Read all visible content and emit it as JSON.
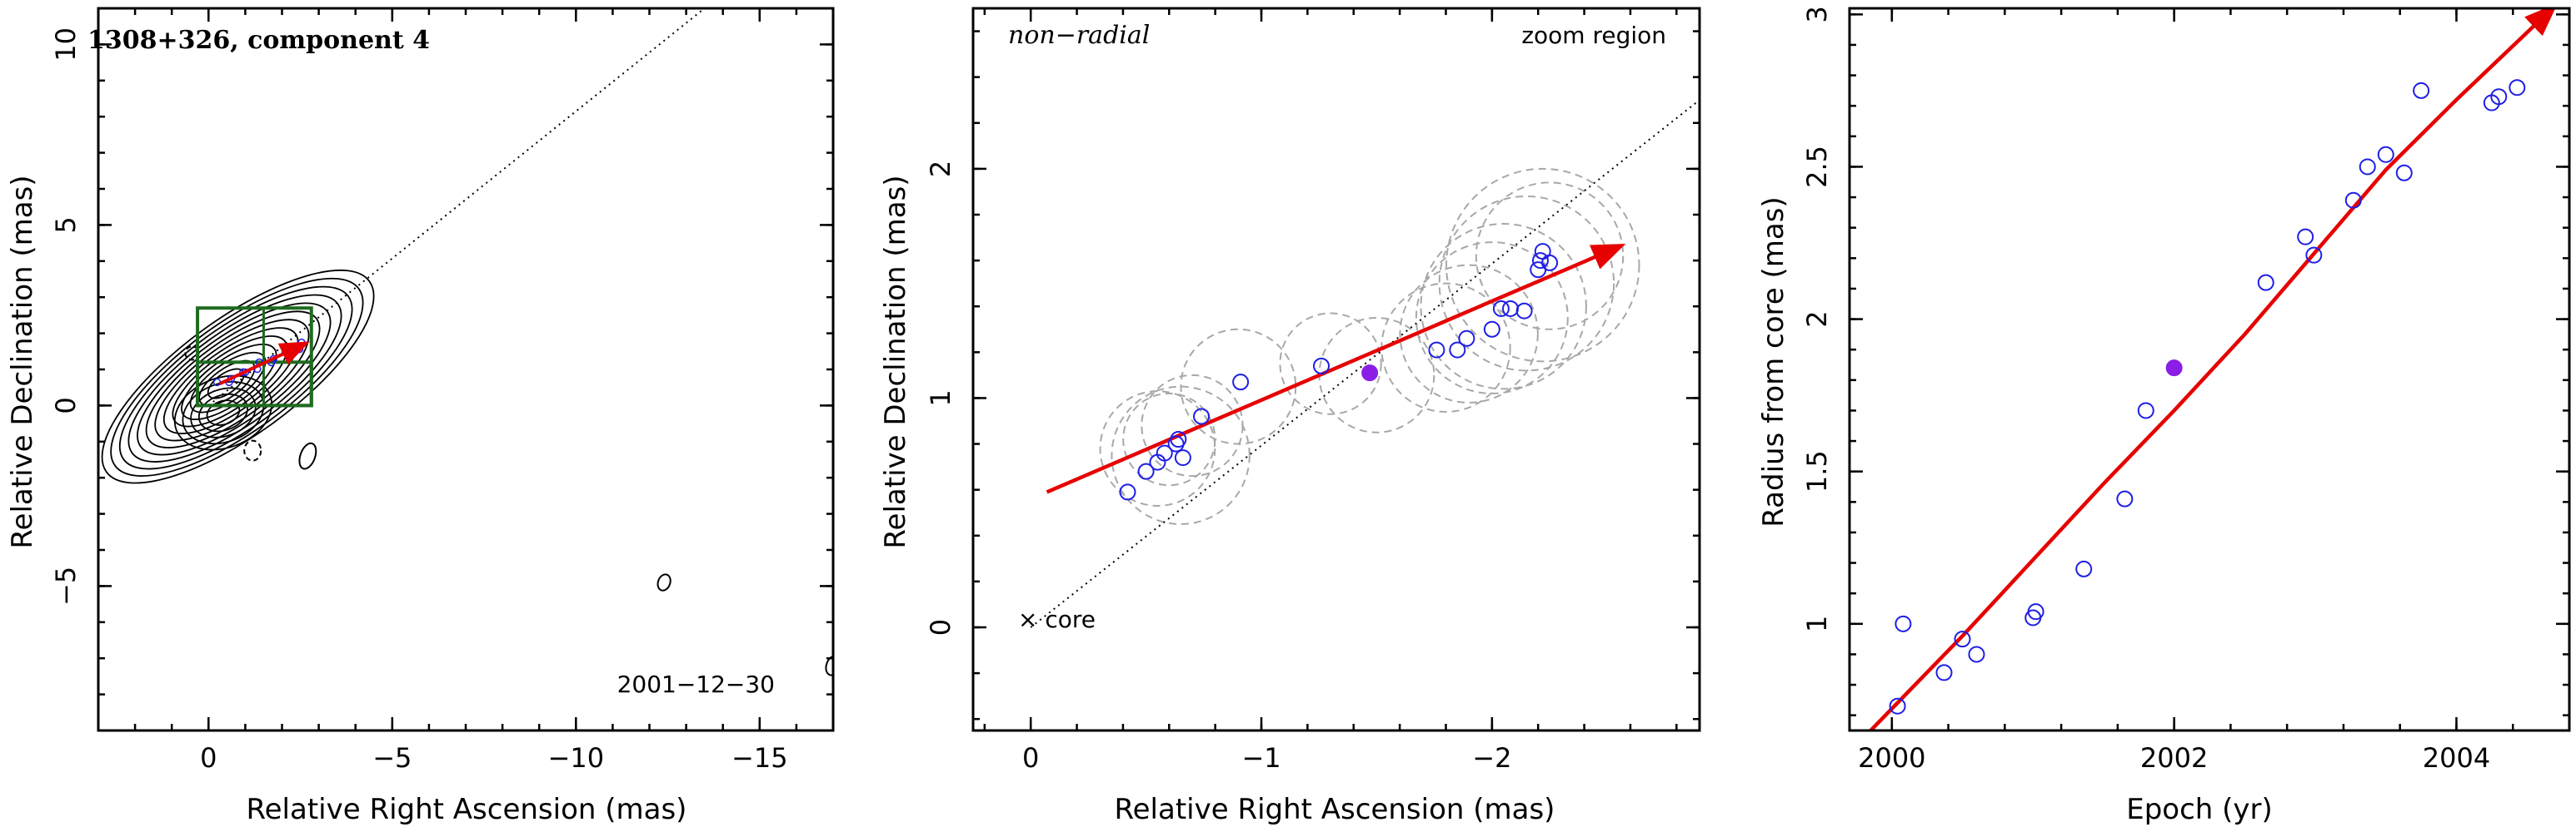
{
  "colors": {
    "arrow": "#e60000",
    "open_point": "#1f1fe6",
    "filled_point": "#8a1ee6",
    "dashed_circle": "#a8a8a8",
    "box": "#1f6b1f",
    "contour": "#000000"
  },
  "chart_data": [
    {
      "id": "panel1",
      "type": "contour",
      "title": "1308+326, component 4",
      "date_label": "2001−12−30",
      "xlabel": "Relative Right Ascension (mas)",
      "ylabel": "Relative Declination (mas)",
      "xlim": [
        3,
        -17
      ],
      "ylim": [
        -9,
        11
      ],
      "xticks": [
        0,
        -5,
        -10,
        -15
      ],
      "xtick_labels": [
        "0",
        "−5",
        "−10",
        "−15"
      ],
      "yticks": [
        -5,
        0,
        5,
        10
      ],
      "ytick_labels": [
        "−5",
        "0",
        "5",
        "10"
      ],
      "dotted_line": [
        [
          0,
          0
        ],
        [
          -13.5,
          11
        ]
      ],
      "zoom_box": {
        "x": [
          0.3,
          -2.8
        ],
        "y": [
          0,
          2.7
        ]
      },
      "zoom_box_inner": {
        "x": [
          0.3,
          -2.8
        ],
        "y": [
          0,
          1.2
        ]
      },
      "zoom_box_divider_x": -1.5,
      "arrow": {
        "from": [
          -0.3,
          0.6
        ],
        "to": [
          -2.6,
          1.7
        ]
      },
      "contour_center": [
        -0.8,
        0.8
      ],
      "isolated_contours": [
        {
          "x": -12.4,
          "y": -4.9,
          "rx": 0.18,
          "ry": 0.25
        },
        {
          "x": -2.7,
          "y": -1.4,
          "rx": 0.22,
          "ry": 0.4
        },
        {
          "x": -17.0,
          "y": -7.2,
          "rx": 0.2,
          "ry": 0.3
        }
      ],
      "dashed_contours": [
        {
          "x": 0.45,
          "y": 1.45,
          "rx": 0.2,
          "ry": 0.2
        },
        {
          "x": -1.2,
          "y": -1.25,
          "rx": 0.25,
          "ry": 0.3
        }
      ]
    },
    {
      "id": "panel2",
      "type": "scatter",
      "title": "non−radial",
      "corner_label": "zoom region",
      "core_label": "× core",
      "xlabel": "Relative Right Ascension (mas)",
      "ylabel": "Relative Declination (mas)",
      "xlim": [
        0.25,
        -2.9
      ],
      "ylim": [
        -0.45,
        2.7
      ],
      "xticks": [
        0,
        -1,
        -2
      ],
      "xtick_labels": [
        "0",
        "−1",
        "−2"
      ],
      "yticks": [
        0,
        1,
        2
      ],
      "ytick_labels": [
        "0",
        "1",
        "2"
      ],
      "dotted_line": [
        [
          0,
          0
        ],
        [
          -2.9,
          2.3
        ]
      ],
      "arrow": {
        "from": [
          -0.07,
          0.59
        ],
        "to": [
          -2.55,
          1.66
        ]
      },
      "points": [
        [
          -0.42,
          0.59
        ],
        [
          -0.5,
          0.68
        ],
        [
          -0.55,
          0.72
        ],
        [
          -0.58,
          0.76
        ],
        [
          -0.63,
          0.8
        ],
        [
          -0.64,
          0.82
        ],
        [
          -0.66,
          0.74
        ],
        [
          -0.74,
          0.92
        ],
        [
          -0.91,
          1.07
        ],
        [
          -1.26,
          1.14
        ],
        [
          -1.76,
          1.21
        ],
        [
          -1.85,
          1.21
        ],
        [
          -1.89,
          1.26
        ],
        [
          -2.0,
          1.3
        ],
        [
          -2.04,
          1.39
        ],
        [
          -2.08,
          1.39
        ],
        [
          -2.14,
          1.38
        ],
        [
          -2.2,
          1.56
        ],
        [
          -2.21,
          1.6
        ],
        [
          -2.22,
          1.64
        ],
        [
          -2.25,
          1.59
        ]
      ],
      "filled_point": [
        -1.47,
        1.11
      ],
      "dashed_circles": [
        {
          "x": -0.55,
          "y": 0.78,
          "r": 0.25
        },
        {
          "x": -0.6,
          "y": 0.82,
          "r": 0.2
        },
        {
          "x": -0.65,
          "y": 0.75,
          "r": 0.3
        },
        {
          "x": -0.7,
          "y": 0.88,
          "r": 0.22
        },
        {
          "x": -0.9,
          "y": 1.05,
          "r": 0.25
        },
        {
          "x": -1.3,
          "y": 1.15,
          "r": 0.22
        },
        {
          "x": -1.5,
          "y": 1.1,
          "r": 0.25
        },
        {
          "x": -1.8,
          "y": 1.22,
          "r": 0.28
        },
        {
          "x": -1.9,
          "y": 1.28,
          "r": 0.3
        },
        {
          "x": -2.0,
          "y": 1.35,
          "r": 0.33
        },
        {
          "x": -2.05,
          "y": 1.4,
          "r": 0.36
        },
        {
          "x": -2.15,
          "y": 1.5,
          "r": 0.38
        },
        {
          "x": -2.22,
          "y": 1.58,
          "r": 0.42
        },
        {
          "x": -2.25,
          "y": 1.62,
          "r": 0.32
        }
      ]
    },
    {
      "id": "panel3",
      "type": "scatter",
      "xlabel": "Epoch (yr)",
      "ylabel": "Radius from core (mas)",
      "xlim": [
        1999.7,
        2004.8
      ],
      "ylim": [
        0.65,
        3.02
      ],
      "xticks": [
        2000,
        2002,
        2004
      ],
      "xtick_labels": [
        "2000",
        "2002",
        "2004"
      ],
      "yticks": [
        1,
        1.5,
        2,
        2.5,
        3
      ],
      "ytick_labels": [
        "1",
        "1.5",
        "2",
        "2.5",
        "3"
      ],
      "points": [
        [
          2000.04,
          0.73
        ],
        [
          2000.08,
          1.0
        ],
        [
          2000.37,
          0.84
        ],
        [
          2000.5,
          0.95
        ],
        [
          2000.6,
          0.9
        ],
        [
          2001.0,
          1.02
        ],
        [
          2001.02,
          1.04
        ],
        [
          2001.36,
          1.18
        ],
        [
          2001.65,
          1.41
        ],
        [
          2001.8,
          1.7
        ],
        [
          2002.65,
          2.12
        ],
        [
          2002.93,
          2.27
        ],
        [
          2002.99,
          2.21
        ],
        [
          2003.27,
          2.39
        ],
        [
          2003.37,
          2.5
        ],
        [
          2003.5,
          2.54
        ],
        [
          2003.63,
          2.48
        ],
        [
          2003.75,
          2.75
        ],
        [
          2004.25,
          2.71
        ],
        [
          2004.3,
          2.73
        ],
        [
          2004.43,
          2.76
        ]
      ],
      "filled_point": [
        2002.0,
        1.84
      ],
      "arrow_curve": [
        [
          1999.85,
          0.65
        ],
        [
          2000.5,
          0.96
        ],
        [
          2001.0,
          1.21
        ],
        [
          2001.5,
          1.46
        ],
        [
          2002.0,
          1.7
        ],
        [
          2002.5,
          1.95
        ],
        [
          2003.0,
          2.22
        ],
        [
          2003.5,
          2.49
        ],
        [
          2004.0,
          2.72
        ],
        [
          2004.68,
          3.02
        ]
      ]
    }
  ]
}
